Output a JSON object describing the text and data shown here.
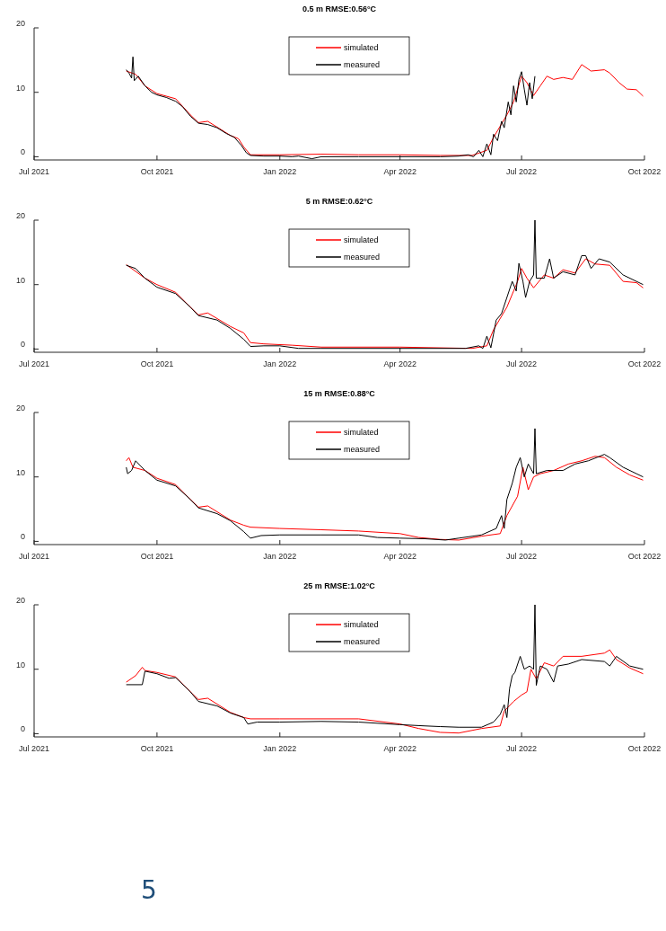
{
  "chart_data": [
    {
      "type": "line",
      "title": "0.5 m RMSE:0.56°C",
      "xlim": [
        "2021-07-01",
        "2022-10-01"
      ],
      "xticks": [
        {
          "value": "2021-07-01",
          "label": "Jul 2021"
        },
        {
          "value": "2021-10-01",
          "label": "Oct 2021"
        },
        {
          "value": "2022-01-01",
          "label": "Jan 2022"
        },
        {
          "value": "2022-04-01",
          "label": "Apr 2022"
        },
        {
          "value": "2022-07-01",
          "label": "Jul 2022"
        },
        {
          "value": "2022-10-01",
          "label": "Oct 2022"
        }
      ],
      "ylim": [
        -0.5,
        20
      ],
      "yticks": [
        0,
        10,
        20
      ],
      "legend": "top",
      "series": [
        {
          "name": "simulated",
          "color": "#ff0000",
          "x": [
            "2021-09-08",
            "2021-09-15",
            "2021-09-22",
            "2021-10-01",
            "2021-10-15",
            "2021-10-26",
            "2021-11-01",
            "2021-11-08",
            "2021-11-15",
            "2021-11-25",
            "2021-12-01",
            "2021-12-05",
            "2021-12-10",
            "2022-01-01",
            "2022-02-01",
            "2022-03-01",
            "2022-04-01",
            "2022-05-01",
            "2022-05-25",
            "2022-06-05",
            "2022-06-10",
            "2022-06-20",
            "2022-06-25",
            "2022-07-01",
            "2022-07-05",
            "2022-07-10",
            "2022-07-15",
            "2022-07-20",
            "2022-07-25",
            "2022-08-01",
            "2022-08-08",
            "2022-08-15",
            "2022-08-22",
            "2022-09-01",
            "2022-09-05",
            "2022-09-12",
            "2022-09-18",
            "2022-09-25",
            "2022-09-30"
          ],
          "values": [
            13.3,
            12.8,
            11.0,
            9.8,
            9.0,
            6.5,
            5.3,
            5.5,
            4.6,
            3.3,
            2.8,
            1.5,
            0.3,
            0.3,
            0.4,
            0.3,
            0.3,
            0.2,
            0.2,
            1.0,
            3.0,
            6.5,
            8.5,
            12.5,
            11.5,
            9.5,
            11.0,
            12.5,
            12.0,
            12.3,
            12.0,
            14.3,
            13.3,
            13.5,
            13.0,
            11.5,
            10.5,
            10.4,
            9.4
          ]
        },
        {
          "name": "measured",
          "color": "#000000",
          "x": [
            "2021-09-08",
            "2021-09-10",
            "2021-09-12",
            "2021-09-13",
            "2021-09-14",
            "2021-09-17",
            "2021-09-22",
            "2021-09-27",
            "2021-10-01",
            "2021-10-08",
            "2021-10-15",
            "2021-10-20",
            "2021-10-26",
            "2021-11-01",
            "2021-11-08",
            "2021-11-15",
            "2021-11-22",
            "2021-11-28",
            "2021-12-03",
            "2021-12-07",
            "2021-12-10",
            "2021-12-20",
            "2022-01-01",
            "2022-01-10",
            "2022-01-15",
            "2022-01-25",
            "2022-02-01",
            "2022-03-01",
            "2022-04-01",
            "2022-05-01",
            "2022-05-15",
            "2022-05-22",
            "2022-05-26",
            "2022-05-30",
            "2022-06-02",
            "2022-06-05",
            "2022-06-08",
            "2022-06-10",
            "2022-06-13",
            "2022-06-16",
            "2022-06-18",
            "2022-06-21",
            "2022-06-23",
            "2022-06-25",
            "2022-06-27",
            "2022-06-29",
            "2022-07-01",
            "2022-07-03",
            "2022-07-05",
            "2022-07-07",
            "2022-07-09",
            "2022-07-11"
          ],
          "values": [
            13.5,
            13.0,
            12.2,
            15.5,
            11.8,
            12.5,
            11.0,
            10.0,
            9.6,
            9.2,
            8.6,
            7.8,
            6.3,
            5.2,
            5.0,
            4.5,
            3.6,
            3.0,
            1.8,
            0.6,
            0.2,
            0.1,
            0.1,
            0.0,
            0.1,
            -0.3,
            0.0,
            0.0,
            0.0,
            0.0,
            0.1,
            0.3,
            0.0,
            1.0,
            0.0,
            2.0,
            0.3,
            3.5,
            2.5,
            5.5,
            4.5,
            8.5,
            6.5,
            11.0,
            8.5,
            12.0,
            13.2,
            10.5,
            8.0,
            11.5,
            9.0,
            12.5
          ]
        }
      ]
    },
    {
      "type": "line",
      "title": "5 m RMSE:0.62°C",
      "xlim": [
        "2021-07-01",
        "2022-10-01"
      ],
      "xticks": [
        {
          "value": "2021-07-01",
          "label": "Jul 2021"
        },
        {
          "value": "2021-10-01",
          "label": "Oct 2021"
        },
        {
          "value": "2022-01-01",
          "label": "Jan 2022"
        },
        {
          "value": "2022-04-01",
          "label": "Apr 2022"
        },
        {
          "value": "2022-07-01",
          "label": "Jul 2022"
        },
        {
          "value": "2022-10-01",
          "label": "Oct 2022"
        }
      ],
      "ylim": [
        -0.5,
        20
      ],
      "yticks": [
        0,
        10,
        20
      ],
      "legend": "top",
      "series": [
        {
          "name": "simulated",
          "color": "#ff0000",
          "x": [
            "2021-09-08",
            "2021-09-22",
            "2021-10-01",
            "2021-10-15",
            "2021-10-26",
            "2021-11-01",
            "2021-11-08",
            "2021-11-25",
            "2021-12-05",
            "2021-12-10",
            "2021-12-20",
            "2022-01-10",
            "2022-02-01",
            "2022-04-01",
            "2022-05-25",
            "2022-06-05",
            "2022-06-10",
            "2022-06-20",
            "2022-06-28",
            "2022-07-01",
            "2022-07-05",
            "2022-07-10",
            "2022-07-18",
            "2022-07-25",
            "2022-08-01",
            "2022-08-10",
            "2022-08-18",
            "2022-08-25",
            "2022-09-05",
            "2022-09-15",
            "2022-09-25",
            "2022-09-30"
          ],
          "values": [
            13.1,
            11.0,
            10.0,
            8.8,
            6.5,
            5.3,
            5.6,
            3.5,
            2.5,
            1.0,
            0.8,
            0.6,
            0.3,
            0.3,
            0.1,
            0.5,
            3.0,
            6.5,
            10.5,
            12.5,
            11.0,
            9.5,
            11.5,
            11.0,
            12.3,
            11.8,
            14.0,
            13.2,
            13.0,
            10.5,
            10.3,
            9.5
          ]
        },
        {
          "name": "measured",
          "color": "#000000",
          "x": [
            "2021-09-08",
            "2021-09-15",
            "2021-09-22",
            "2021-10-01",
            "2021-10-15",
            "2021-10-26",
            "2021-11-01",
            "2021-11-15",
            "2021-11-25",
            "2021-12-05",
            "2021-12-10",
            "2021-12-20",
            "2022-01-01",
            "2022-01-15",
            "2022-02-01",
            "2022-04-01",
            "2022-05-20",
            "2022-05-30",
            "2022-06-02",
            "2022-06-05",
            "2022-06-08",
            "2022-06-12",
            "2022-06-16",
            "2022-06-20",
            "2022-06-24",
            "2022-06-27",
            "2022-06-29",
            "2022-07-02",
            "2022-07-04",
            "2022-07-07",
            "2022-07-10",
            "2022-07-11",
            "2022-07-12",
            "2022-07-18",
            "2022-07-22",
            "2022-07-25",
            "2022-08-01",
            "2022-08-10",
            "2022-08-15",
            "2022-08-18",
            "2022-08-22",
            "2022-08-28",
            "2022-09-05",
            "2022-09-15",
            "2022-09-25",
            "2022-09-30"
          ],
          "values": [
            13.0,
            12.5,
            11.0,
            9.6,
            8.6,
            6.5,
            5.2,
            4.5,
            3.2,
            1.5,
            0.4,
            0.5,
            0.5,
            0.1,
            0.1,
            0.1,
            0.1,
            0.5,
            0.1,
            2.0,
            0.2,
            4.5,
            5.5,
            8.0,
            10.5,
            9.0,
            13.3,
            10.5,
            8.0,
            10.5,
            11.5,
            20.0,
            11.0,
            11.0,
            14.0,
            11.0,
            12.0,
            11.5,
            14.5,
            14.5,
            12.5,
            14.0,
            13.5,
            11.5,
            10.5,
            10.0
          ]
        }
      ]
    },
    {
      "type": "line",
      "title": "15 m RMSE:0.88°C",
      "xlim": [
        "2021-07-01",
        "2022-10-01"
      ],
      "xticks": [
        {
          "value": "2021-07-01",
          "label": "Jul 2021"
        },
        {
          "value": "2021-10-01",
          "label": "Oct 2021"
        },
        {
          "value": "2022-01-01",
          "label": "Jan 2022"
        },
        {
          "value": "2022-04-01",
          "label": "Apr 2022"
        },
        {
          "value": "2022-07-01",
          "label": "Jul 2022"
        },
        {
          "value": "2022-10-01",
          "label": "Oct 2022"
        }
      ],
      "ylim": [
        -0.5,
        20
      ],
      "yticks": [
        0,
        10,
        20
      ],
      "legend": "top",
      "series": [
        {
          "name": "simulated",
          "color": "#ff0000",
          "x": [
            "2021-09-08",
            "2021-09-10",
            "2021-09-13",
            "2021-09-22",
            "2021-10-01",
            "2021-10-15",
            "2021-10-26",
            "2021-11-01",
            "2021-11-08",
            "2021-11-25",
            "2021-12-05",
            "2021-12-10",
            "2022-01-01",
            "2022-02-01",
            "2022-03-01",
            "2022-04-01",
            "2022-04-15",
            "2022-05-01",
            "2022-05-15",
            "2022-06-01",
            "2022-06-15",
            "2022-06-20",
            "2022-06-28",
            "2022-07-02",
            "2022-07-06",
            "2022-07-10",
            "2022-07-15",
            "2022-07-25",
            "2022-08-05",
            "2022-08-15",
            "2022-08-25",
            "2022-09-01",
            "2022-09-10",
            "2022-09-20",
            "2022-09-30"
          ],
          "values": [
            12.5,
            13.0,
            11.5,
            11.0,
            9.8,
            8.8,
            6.5,
            5.3,
            5.5,
            3.3,
            2.5,
            2.2,
            2.0,
            1.8,
            1.6,
            1.2,
            0.6,
            0.3,
            0.2,
            0.8,
            1.2,
            4.0,
            7.0,
            11.5,
            8.0,
            10.0,
            10.5,
            11.0,
            12.0,
            12.5,
            13.2,
            13.0,
            11.5,
            10.3,
            9.5
          ]
        },
        {
          "name": "measured",
          "color": "#000000",
          "x": [
            "2021-09-08",
            "2021-09-09",
            "2021-09-12",
            "2021-09-15",
            "2021-09-22",
            "2021-10-01",
            "2021-10-15",
            "2021-10-26",
            "2021-11-01",
            "2021-11-15",
            "2021-11-25",
            "2021-12-05",
            "2021-12-10",
            "2021-12-18",
            "2022-01-01",
            "2022-02-01",
            "2022-03-01",
            "2022-03-15",
            "2022-04-01",
            "2022-04-20",
            "2022-05-05",
            "2022-05-15",
            "2022-06-01",
            "2022-06-12",
            "2022-06-16",
            "2022-06-18",
            "2022-06-20",
            "2022-06-24",
            "2022-06-27",
            "2022-06-30",
            "2022-07-03",
            "2022-07-06",
            "2022-07-10",
            "2022-07-11",
            "2022-07-12",
            "2022-07-20",
            "2022-08-01",
            "2022-08-10",
            "2022-08-20",
            "2022-09-01",
            "2022-09-05",
            "2022-09-15",
            "2022-09-25",
            "2022-09-30"
          ],
          "values": [
            11.5,
            10.5,
            11.0,
            12.5,
            11.0,
            9.5,
            8.6,
            6.5,
            5.2,
            4.3,
            3.2,
            1.5,
            0.5,
            0.9,
            1.0,
            1.0,
            1.0,
            0.6,
            0.5,
            0.4,
            0.2,
            0.5,
            1.0,
            2.0,
            4.0,
            2.0,
            6.5,
            9.0,
            11.5,
            13.0,
            10.0,
            12.0,
            10.5,
            17.5,
            10.5,
            11.0,
            11.0,
            12.0,
            12.5,
            13.5,
            13.0,
            11.5,
            10.5,
            10.0
          ]
        }
      ]
    },
    {
      "type": "line",
      "title": "25 m RMSE:1.02°C",
      "xlim": [
        "2021-07-01",
        "2022-10-01"
      ],
      "xticks": [
        {
          "value": "2021-07-01",
          "label": "Jul 2021"
        },
        {
          "value": "2021-10-01",
          "label": "Oct 2021"
        },
        {
          "value": "2022-01-01",
          "label": "Jan 2022"
        },
        {
          "value": "2022-04-01",
          "label": "Apr 2022"
        },
        {
          "value": "2022-07-01",
          "label": "Jul 2022"
        },
        {
          "value": "2022-10-01",
          "label": "Oct 2022"
        }
      ],
      "ylim": [
        -0.5,
        20
      ],
      "yticks": [
        0,
        10,
        20
      ],
      "legend": "top",
      "annotations": [
        "5"
      ],
      "series": [
        {
          "name": "simulated",
          "color": "#ff0000",
          "x": [
            "2021-09-08",
            "2021-09-15",
            "2021-09-20",
            "2021-09-22",
            "2021-10-01",
            "2021-10-15",
            "2021-10-26",
            "2021-11-01",
            "2021-11-08",
            "2021-11-25",
            "2021-12-05",
            "2021-12-10",
            "2022-01-01",
            "2022-03-01",
            "2022-04-01",
            "2022-04-15",
            "2022-05-01",
            "2022-05-15",
            "2022-06-01",
            "2022-06-15",
            "2022-06-18",
            "2022-06-25",
            "2022-07-01",
            "2022-07-05",
            "2022-07-08",
            "2022-07-12",
            "2022-07-18",
            "2022-07-25",
            "2022-08-01",
            "2022-08-15",
            "2022-09-01",
            "2022-09-05",
            "2022-09-10",
            "2022-09-20",
            "2022-09-30"
          ],
          "values": [
            8.0,
            9.0,
            10.3,
            9.8,
            9.5,
            8.8,
            6.5,
            5.3,
            5.5,
            3.3,
            2.5,
            2.3,
            2.3,
            2.3,
            1.5,
            0.8,
            0.2,
            0.1,
            0.8,
            1.2,
            3.5,
            5.0,
            6.0,
            6.5,
            10.0,
            8.5,
            11.0,
            10.5,
            12.0,
            12.0,
            12.5,
            13.0,
            11.5,
            10.2,
            9.3
          ]
        },
        {
          "name": "measured",
          "color": "#000000",
          "x": [
            "2021-09-08",
            "2021-09-20",
            "2021-09-22",
            "2021-10-01",
            "2021-10-10",
            "2021-10-15",
            "2021-10-26",
            "2021-11-01",
            "2021-11-15",
            "2021-11-25",
            "2021-12-05",
            "2021-12-08",
            "2021-12-15",
            "2022-01-01",
            "2022-02-01",
            "2022-03-01",
            "2022-04-01",
            "2022-04-20",
            "2022-05-01",
            "2022-05-15",
            "2022-06-01",
            "2022-06-10",
            "2022-06-15",
            "2022-06-18",
            "2022-06-20",
            "2022-06-22",
            "2022-06-24",
            "2022-06-26",
            "2022-06-30",
            "2022-07-03",
            "2022-07-07",
            "2022-07-10",
            "2022-07-11",
            "2022-07-12",
            "2022-07-15",
            "2022-07-20",
            "2022-07-25",
            "2022-07-28",
            "2022-08-05",
            "2022-08-15",
            "2022-09-01",
            "2022-09-05",
            "2022-09-10",
            "2022-09-20",
            "2022-09-30"
          ],
          "values": [
            7.6,
            7.6,
            9.7,
            9.3,
            8.6,
            8.7,
            6.5,
            5.0,
            4.3,
            3.2,
            2.5,
            1.5,
            1.8,
            1.8,
            1.9,
            1.8,
            1.4,
            1.2,
            1.1,
            1.0,
            1.0,
            1.8,
            3.0,
            4.5,
            2.5,
            7.0,
            9.0,
            9.5,
            12.0,
            10.0,
            10.5,
            10.0,
            20.0,
            7.5,
            10.5,
            10.0,
            8.0,
            10.5,
            10.8,
            11.5,
            11.2,
            10.5,
            12.0,
            10.5,
            10.0
          ]
        }
      ]
    }
  ]
}
